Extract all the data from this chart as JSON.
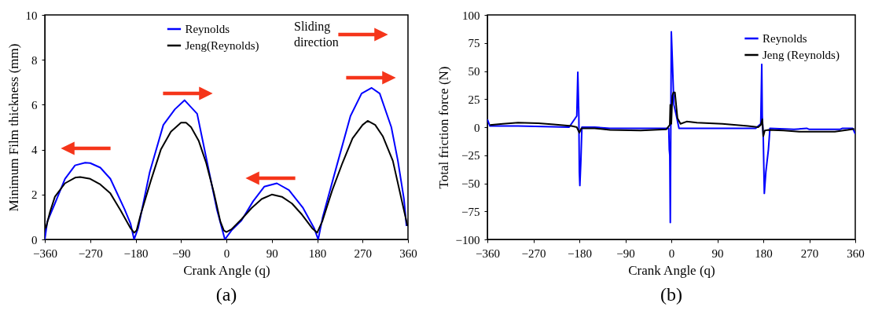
{
  "chart_data": [
    {
      "type": "line",
      "title": "(a)",
      "xlabel": "Crank Angle (q)",
      "ylabel": "Minimum Film thickness (mm)",
      "xlim": [
        -360,
        360
      ],
      "ylim": [
        0,
        10
      ],
      "xticks": [
        -360,
        -270,
        -180,
        -90,
        0,
        90,
        180,
        270,
        360
      ],
      "yticks": [
        0,
        2,
        4,
        6,
        8,
        10
      ],
      "grid": false,
      "legend": "top",
      "annotations": [
        "Sliding direction"
      ],
      "series": [
        {
          "name": "Reynolds",
          "color": "#0000ff",
          "x": [
            -360,
            -355,
            -340,
            -320,
            -300,
            -280,
            -270,
            -250,
            -230,
            -202,
            -190,
            -183,
            -175,
            -152,
            -125,
            -102,
            -83,
            -58,
            -36,
            -19,
            -3,
            10,
            30,
            53,
            75,
            100,
            124,
            152,
            174,
            182,
            191,
            219,
            246,
            268,
            288,
            304,
            327,
            340,
            352,
            357
          ],
          "values": [
            0.0,
            0.8,
            1.6,
            2.7,
            3.3,
            3.42,
            3.4,
            3.2,
            2.7,
            1.35,
            0.7,
            0.0,
            0.5,
            3.0,
            5.1,
            5.8,
            6.2,
            5.6,
            3.2,
            1.35,
            0.0,
            0.4,
            0.85,
            1.7,
            2.35,
            2.5,
            2.2,
            1.4,
            0.5,
            0.0,
            1.0,
            3.3,
            5.5,
            6.5,
            6.75,
            6.5,
            5.0,
            3.5,
            1.8,
            0.6
          ]
        },
        {
          "name": "Jeng(Reynolds)",
          "color": "#000000",
          "x": [
            -358,
            -350,
            -340,
            -320,
            -300,
            -290,
            -270,
            -250,
            -230,
            -210,
            -190,
            -183,
            -178,
            -170,
            -150,
            -130,
            -110,
            -90,
            -80,
            -70,
            -55,
            -40,
            -25,
            -12,
            -5,
            0,
            10,
            30,
            50,
            70,
            90,
            110,
            130,
            150,
            170,
            180,
            190,
            210,
            230,
            250,
            270,
            280,
            295,
            310,
            330,
            345,
            355,
            359
          ],
          "values": [
            0.5,
            1.2,
            1.9,
            2.5,
            2.75,
            2.78,
            2.7,
            2.45,
            2.05,
            1.3,
            0.5,
            0.3,
            0.4,
            1.1,
            2.6,
            4.0,
            4.8,
            5.2,
            5.2,
            5.0,
            4.4,
            3.4,
            2.1,
            0.8,
            0.4,
            0.33,
            0.45,
            0.9,
            1.4,
            1.8,
            2.0,
            1.9,
            1.6,
            1.1,
            0.5,
            0.3,
            0.8,
            2.2,
            3.4,
            4.5,
            5.1,
            5.28,
            5.1,
            4.6,
            3.5,
            2.0,
            1.0,
            0.6
          ]
        }
      ]
    },
    {
      "type": "line",
      "title": "(b)",
      "xlabel": "Crank Angle (q)",
      "ylabel": "Total friction force (N)",
      "xlim": [
        -360,
        360
      ],
      "ylim": [
        -100,
        100
      ],
      "xticks": [
        -360,
        -270,
        -180,
        -90,
        0,
        90,
        180,
        270,
        360
      ],
      "yticks": [
        -100,
        -75,
        -50,
        -25,
        0,
        25,
        50,
        75,
        100
      ],
      "grid": false,
      "legend": "top right",
      "series": [
        {
          "name": "Reynolds",
          "color": "#0000ff",
          "x": [
            -360,
            -355,
            -300,
            -200,
            -185,
            -183,
            -181,
            -180,
            -179,
            -177,
            -175,
            -150,
            -120,
            -50,
            -5,
            -4,
            -3,
            -2,
            0,
            2,
            5,
            10,
            15,
            100,
            165,
            175,
            177,
            178,
            180,
            182,
            185,
            190,
            193,
            240,
            265,
            270,
            330,
            335,
            355,
            360
          ],
          "values": [
            7,
            1,
            1,
            0,
            10,
            49,
            10,
            -40,
            -52,
            -30,
            0,
            0,
            -1,
            -1,
            -1,
            -20,
            -25,
            -85,
            85,
            60,
            20,
            10,
            -1,
            -1,
            -1,
            3,
            56,
            10,
            -10,
            -59,
            -40,
            -20,
            -1,
            -2,
            -1,
            -2,
            -2,
            -1,
            -1,
            -6
          ]
        },
        {
          "name": "Jeng (Reynolds)",
          "color": "#000000",
          "x": [
            -355,
            -330,
            -300,
            -260,
            -230,
            -195,
            -185,
            -180,
            -176,
            -150,
            -120,
            -60,
            -10,
            -3,
            -2,
            0,
            2,
            4,
            7,
            12,
            18,
            30,
            50,
            100,
            150,
            170,
            175,
            178,
            180,
            183,
            190,
            220,
            250,
            320,
            345,
            358
          ],
          "values": [
            2,
            3,
            4,
            3.5,
            2.5,
            1,
            0,
            -5,
            -1,
            -1,
            -2.5,
            -3,
            -2,
            2,
            20,
            3,
            28,
            31,
            31,
            8,
            3,
            5,
            4,
            3,
            1,
            0,
            2,
            7,
            -8,
            -3,
            -2.5,
            -3,
            -4,
            -4,
            -2.5,
            -1.5
          ]
        }
      ]
    }
  ]
}
